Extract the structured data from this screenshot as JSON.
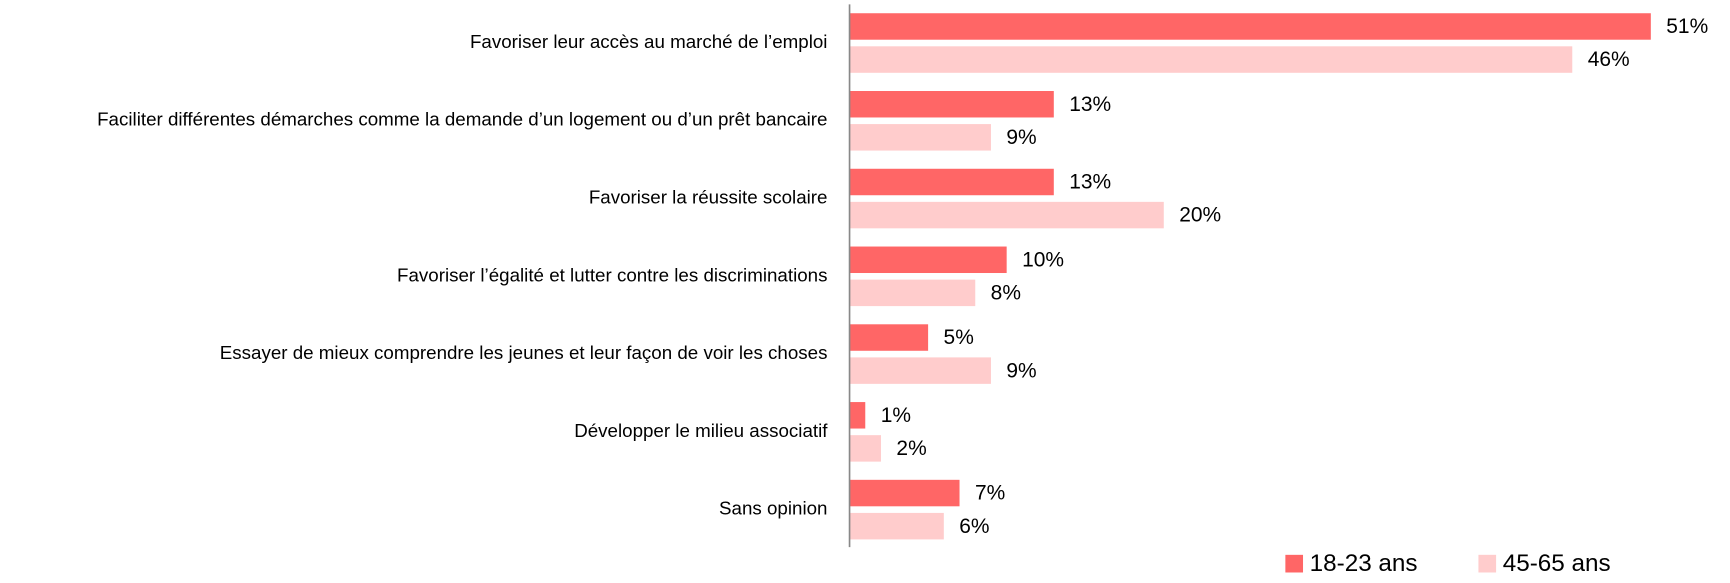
{
  "chart_data": {
    "type": "bar",
    "orientation": "horizontal",
    "categories": [
      "Favoriser leur accès au marché de l’emploi",
      "Faciliter différentes démarches comme la demande d’un logement ou d’un prêt bancaire",
      "Favoriser la réussite scolaire",
      "Favoriser l’égalité  et lutter contre les discriminations",
      "Essayer de mieux comprendre les jeunes et leur façon de voir les choses",
      "Développer le milieu associatif",
      "Sans opinion"
    ],
    "series": [
      {
        "name": "18-23 ans",
        "color": "#ff6666",
        "values": [
          51,
          13,
          13,
          10,
          5,
          1,
          7
        ],
        "value_labels": [
          "51%",
          "13%",
          "13%",
          "10%",
          "5%",
          "1%",
          "7%"
        ]
      },
      {
        "name": "45-65 ans",
        "color": "#ffcccc",
        "values": [
          46,
          9,
          20,
          8,
          9,
          2,
          6
        ],
        "value_labels": [
          "46%",
          "9%",
          "20%",
          "8%",
          "9%",
          "2%",
          "6%"
        ]
      }
    ],
    "legend": "bottom-right"
  }
}
